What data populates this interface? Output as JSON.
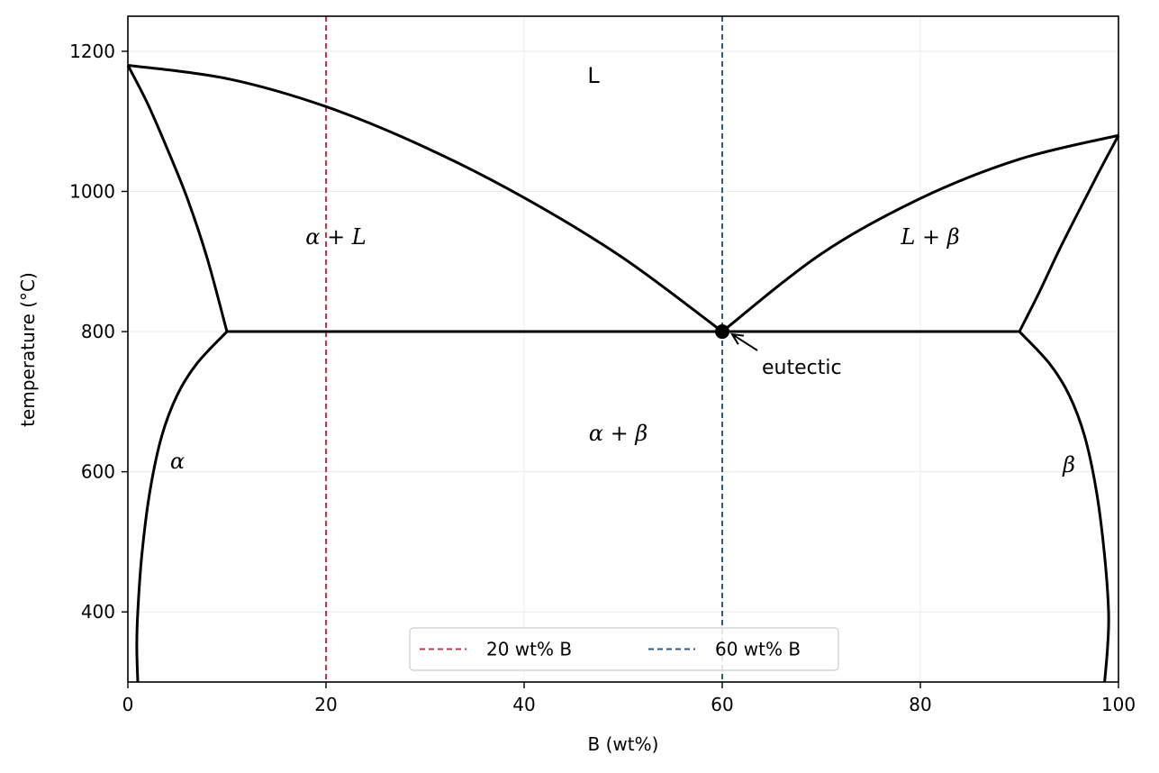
{
  "chart_data": {
    "type": "line",
    "xlabel": "B (wt%)",
    "ylabel": "temperature (°C)",
    "xlim": [
      0,
      100
    ],
    "ylim": [
      300,
      1250
    ],
    "x_ticks": [
      0,
      20,
      40,
      60,
      80,
      100
    ],
    "y_ticks": [
      400,
      600,
      800,
      1000,
      1200
    ],
    "grid": true,
    "legend_position": "lower-center",
    "phase_boundaries": [
      {
        "name": "liquidus-left",
        "points": [
          [
            0,
            1180
          ],
          [
            10,
            1161
          ],
          [
            20,
            1121
          ],
          [
            30,
            1063
          ],
          [
            40,
            991
          ],
          [
            50,
            905
          ],
          [
            60,
            800
          ]
        ]
      },
      {
        "name": "liquidus-right",
        "points": [
          [
            60,
            800
          ],
          [
            70,
            911
          ],
          [
            80,
            990
          ],
          [
            90,
            1046
          ],
          [
            100,
            1080
          ]
        ]
      },
      {
        "name": "solidus-left",
        "points": [
          [
            0,
            1180
          ],
          [
            2,
            1125
          ],
          [
            4,
            1060
          ],
          [
            6,
            990
          ],
          [
            8,
            905
          ],
          [
            10,
            800
          ]
        ]
      },
      {
        "name": "solidus-right",
        "points": [
          [
            90,
            800
          ],
          [
            92,
            856
          ],
          [
            94,
            916
          ],
          [
            96,
            972
          ],
          [
            98,
            1027
          ],
          [
            100,
            1080
          ]
        ]
      },
      {
        "name": "solvus-left",
        "points": [
          [
            10,
            800
          ],
          [
            7,
            755
          ],
          [
            5,
            710
          ],
          [
            3.4,
            650
          ],
          [
            2.2,
            570
          ],
          [
            1.4,
            480
          ],
          [
            1,
            400
          ],
          [
            0.9,
            350
          ],
          [
            1,
            300
          ]
        ]
      },
      {
        "name": "solvus-right",
        "points": [
          [
            90,
            800
          ],
          [
            93,
            755
          ],
          [
            95,
            710
          ],
          [
            96.6,
            650
          ],
          [
            97.8,
            570
          ],
          [
            98.6,
            480
          ],
          [
            99,
            400
          ],
          [
            98.9,
            350
          ],
          [
            98.6,
            300
          ]
        ]
      },
      {
        "name": "eutectic-isotherm",
        "points": [
          [
            10,
            800
          ],
          [
            90,
            800
          ]
        ]
      }
    ],
    "composition_lines": [
      {
        "name": "20 wt% B",
        "x": 20,
        "color": "#c0364e"
      },
      {
        "name": "60 wt% B",
        "x": 60,
        "color": "#2c5a8c"
      }
    ],
    "eutectic_point": {
      "x": 60,
      "y": 800,
      "label": "eutectic",
      "label_at": [
        64,
        750
      ]
    },
    "region_labels": [
      {
        "text": "L",
        "x": 47,
        "y": 1165,
        "italic": false
      },
      {
        "text": "α + L",
        "x": 21,
        "y": 935,
        "italic": true
      },
      {
        "text": "L + β",
        "x": 81,
        "y": 935,
        "italic": true
      },
      {
        "text": "α + β",
        "x": 49.5,
        "y": 655,
        "italic": true
      },
      {
        "text": "α",
        "x": 5,
        "y": 615,
        "italic": true
      },
      {
        "text": "β",
        "x": 95,
        "y": 610,
        "italic": true
      }
    ]
  }
}
